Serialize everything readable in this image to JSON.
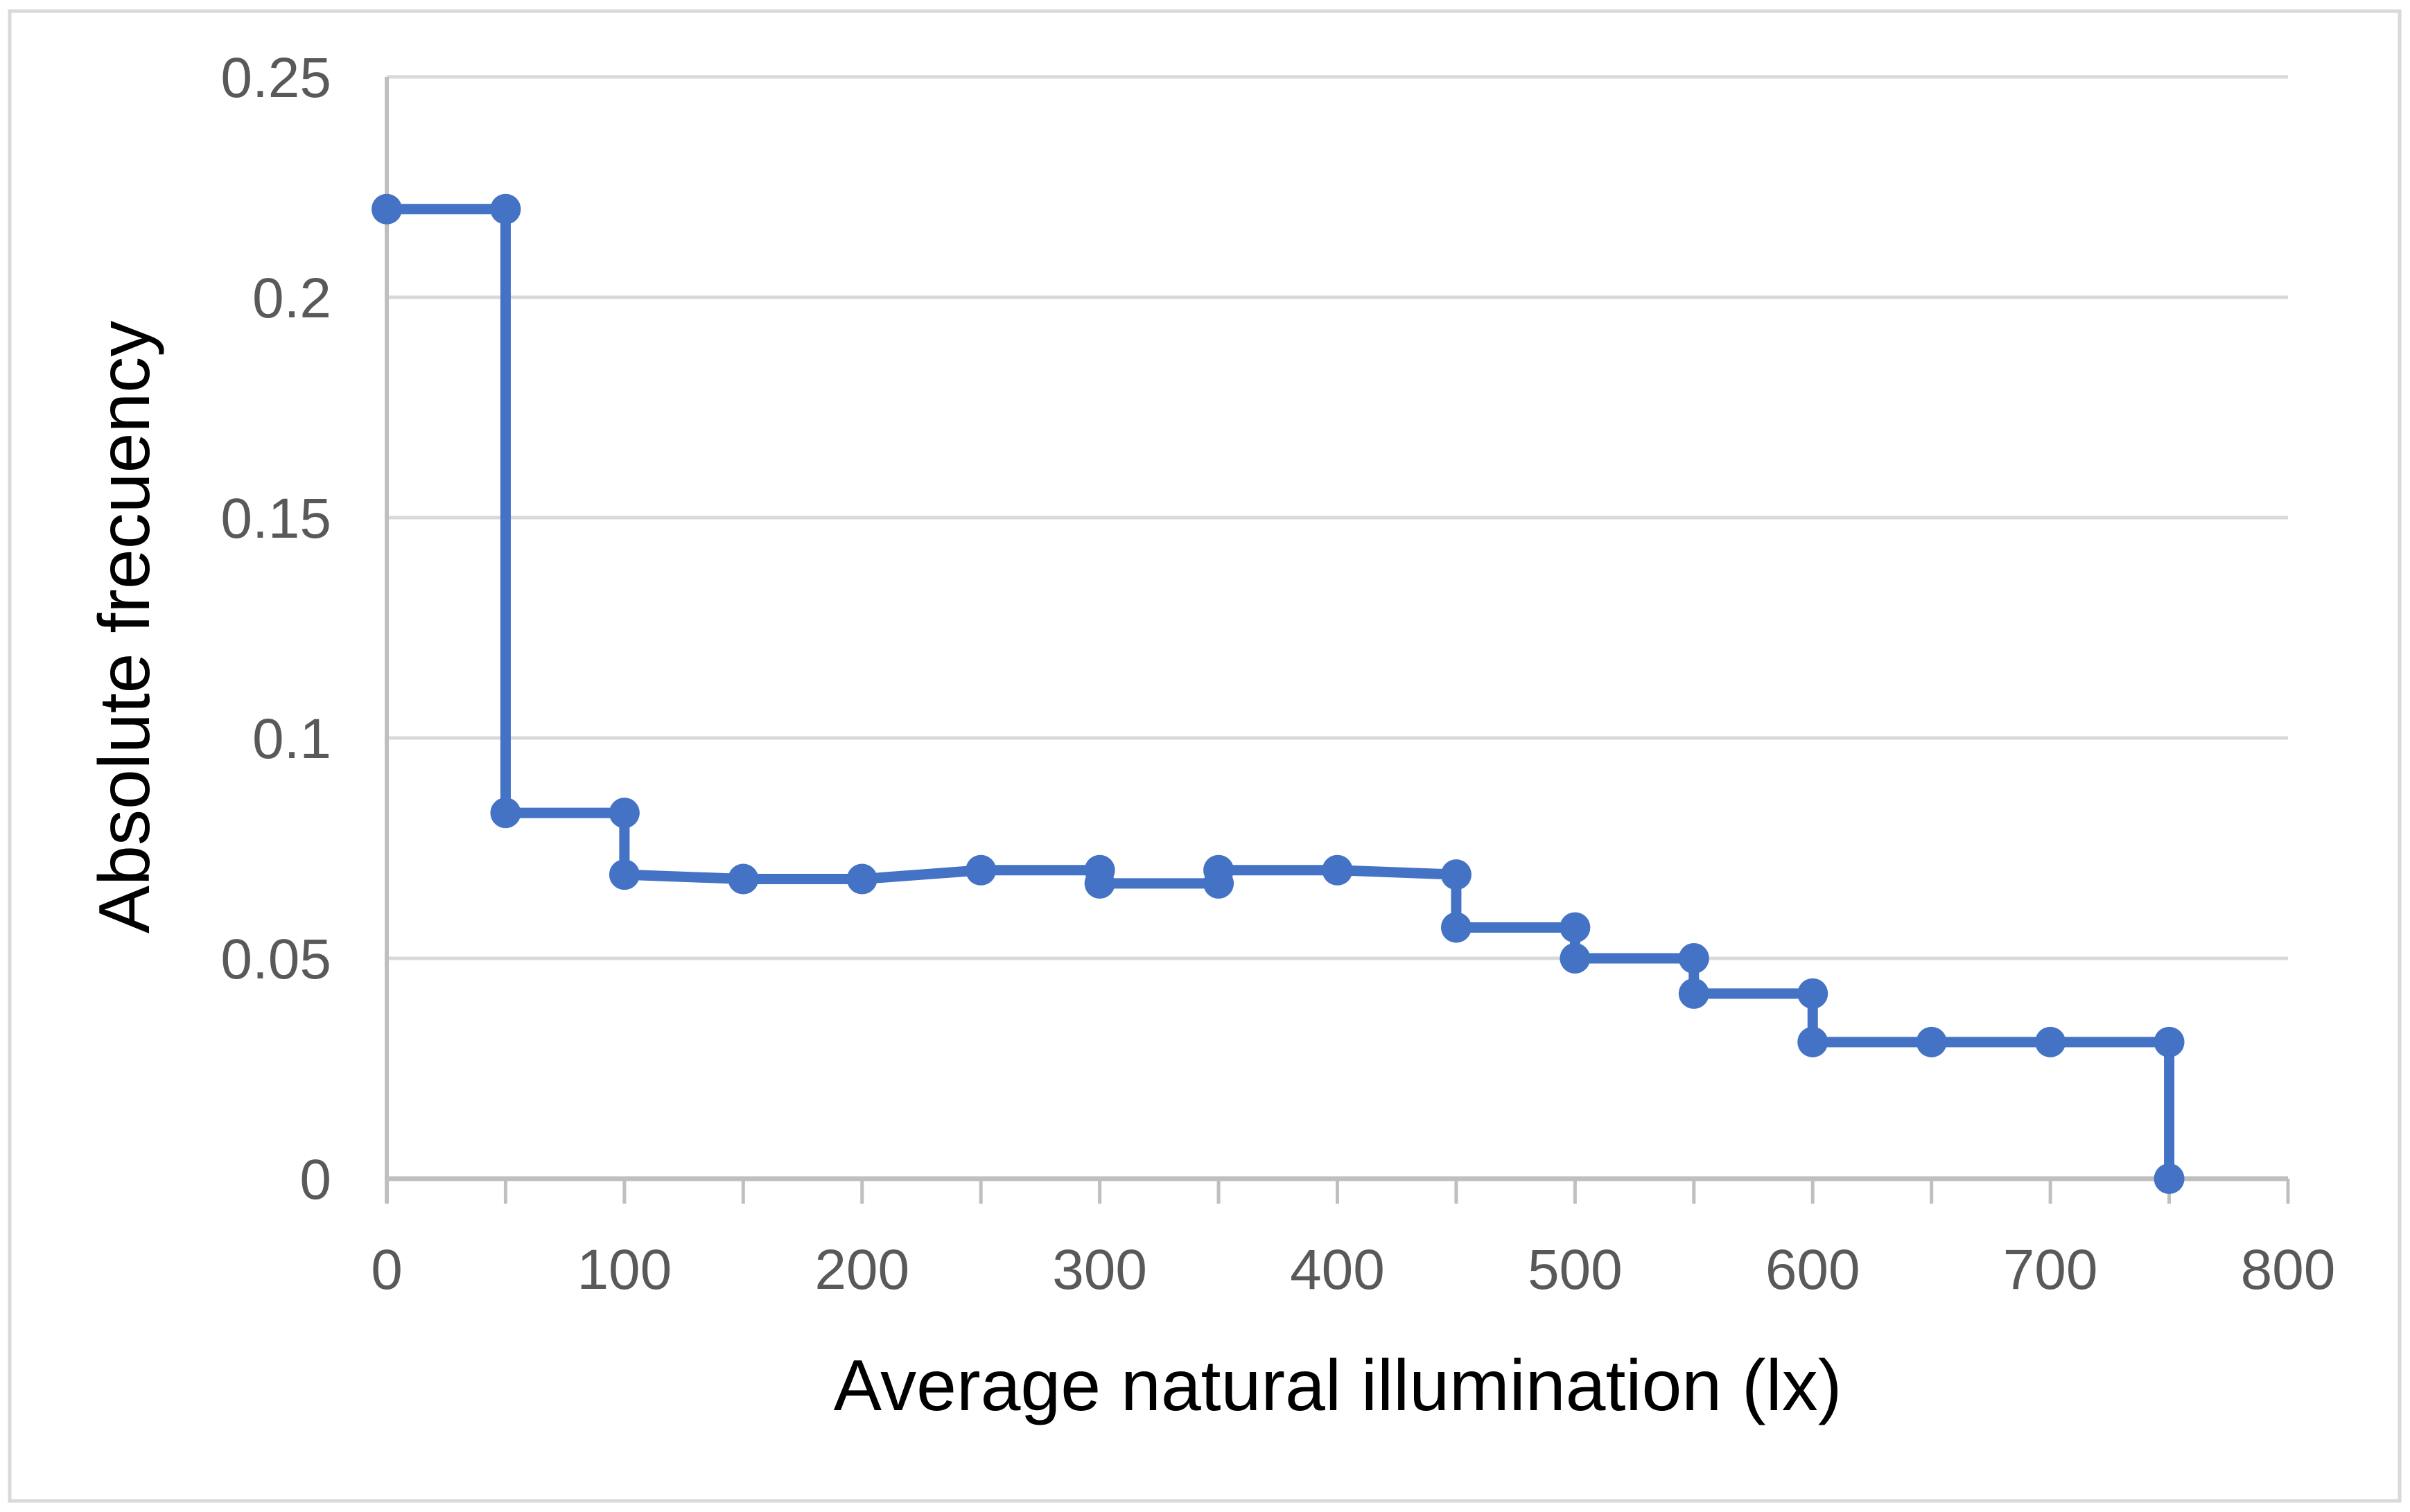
{
  "figure": {
    "background": "#FFFFFF",
    "border_color": "#D9D9D9"
  },
  "chart_data": {
    "type": "line",
    "subtype": "step-frequency-curve-with-markers",
    "title": "",
    "xlabel": "Average natural illumination (lx)",
    "ylabel": "Absolute frecuency",
    "xlim": [
      0,
      800
    ],
    "ylim": [
      0,
      0.25
    ],
    "grid": "horizontal",
    "legend": "none",
    "x_ticks": [
      {
        "value": 0,
        "label": "0"
      },
      {
        "value": 100,
        "label": "100"
      },
      {
        "value": 200,
        "label": "200"
      },
      {
        "value": 300,
        "label": "300"
      },
      {
        "value": 400,
        "label": "400"
      },
      {
        "value": 500,
        "label": "500"
      },
      {
        "value": 600,
        "label": "600"
      },
      {
        "value": 700,
        "label": "700"
      },
      {
        "value": 800,
        "label": "800"
      }
    ],
    "x_minor_tick_step": 50,
    "y_ticks": [
      {
        "value": 0,
        "label": "0"
      },
      {
        "value": 0.05,
        "label": "0.05"
      },
      {
        "value": 0.1,
        "label": "0.1"
      },
      {
        "value": 0.15,
        "label": "0.15"
      },
      {
        "value": 0.2,
        "label": "0.2"
      },
      {
        "value": 0.25,
        "label": "0.25"
      }
    ],
    "series": [
      {
        "name": "Absolute frequency",
        "color": "#4472C4",
        "marker": "circle",
        "points": [
          [
            0,
            0.22
          ],
          [
            50,
            0.22
          ],
          [
            50,
            0.083
          ],
          [
            100,
            0.083
          ],
          [
            100,
            0.069
          ],
          [
            150,
            0.068
          ],
          [
            200,
            0.068
          ],
          [
            250,
            0.07
          ],
          [
            300,
            0.07
          ],
          [
            300,
            0.067
          ],
          [
            350,
            0.067
          ],
          [
            350,
            0.07
          ],
          [
            400,
            0.07
          ],
          [
            450,
            0.069
          ],
          [
            450,
            0.057
          ],
          [
            500,
            0.057
          ],
          [
            500,
            0.05
          ],
          [
            550,
            0.05
          ],
          [
            550,
            0.042
          ],
          [
            600,
            0.042
          ],
          [
            600,
            0.031
          ],
          [
            650,
            0.031
          ],
          [
            700,
            0.031
          ],
          [
            750,
            0.031
          ],
          [
            750,
            0
          ]
        ]
      }
    ],
    "colors": {
      "gridline": "#D9D9D9",
      "axis_line": "#BFBFBF",
      "tick_label": "#595959",
      "axis_title": "#000000"
    }
  }
}
